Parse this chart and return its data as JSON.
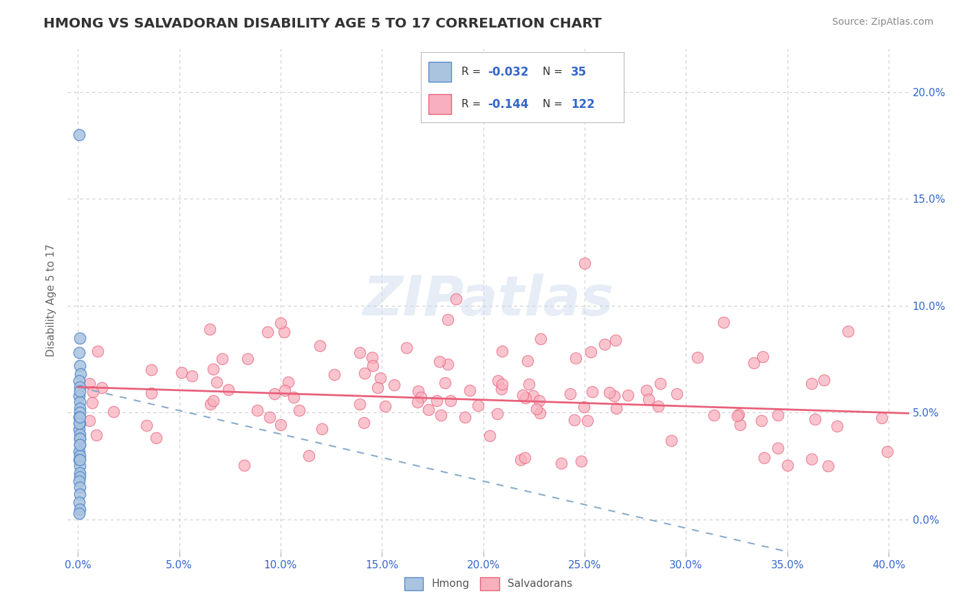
{
  "title": "HMONG VS SALVADORAN DISABILITY AGE 5 TO 17 CORRELATION CHART",
  "source_text": "Source: ZipAtlas.com",
  "xlabel_ticks": [
    "0.0%",
    "5.0%",
    "10.0%",
    "15.0%",
    "20.0%",
    "25.0%",
    "30.0%",
    "35.0%",
    "40.0%"
  ],
  "ylabel_ticks": [
    "0.0%",
    "5.0%",
    "10.0%",
    "15.0%",
    "20.0%"
  ],
  "xlabel_tick_vals": [
    0,
    5,
    10,
    15,
    20,
    25,
    30,
    35,
    40
  ],
  "ylabel_tick_vals": [
    0,
    5,
    10,
    15,
    20
  ],
  "xlim": [
    -0.5,
    41
  ],
  "ylim": [
    -1.5,
    22
  ],
  "watermark": "ZIPatlas",
  "hmong_color": "#aac4e0",
  "hmong_edge_color": "#5588cc",
  "salv_color": "#f8b0be",
  "salv_edge_color": "#e8607a",
  "hmong_R": -0.032,
  "hmong_N": 35,
  "salv_R": -0.144,
  "salv_N": 122,
  "ylabel": "Disability Age 5 to 17",
  "grid_color": "#cccccc",
  "background_color": "#ffffff",
  "tick_color": "#3366cc",
  "title_color": "#333333",
  "source_color": "#888888"
}
